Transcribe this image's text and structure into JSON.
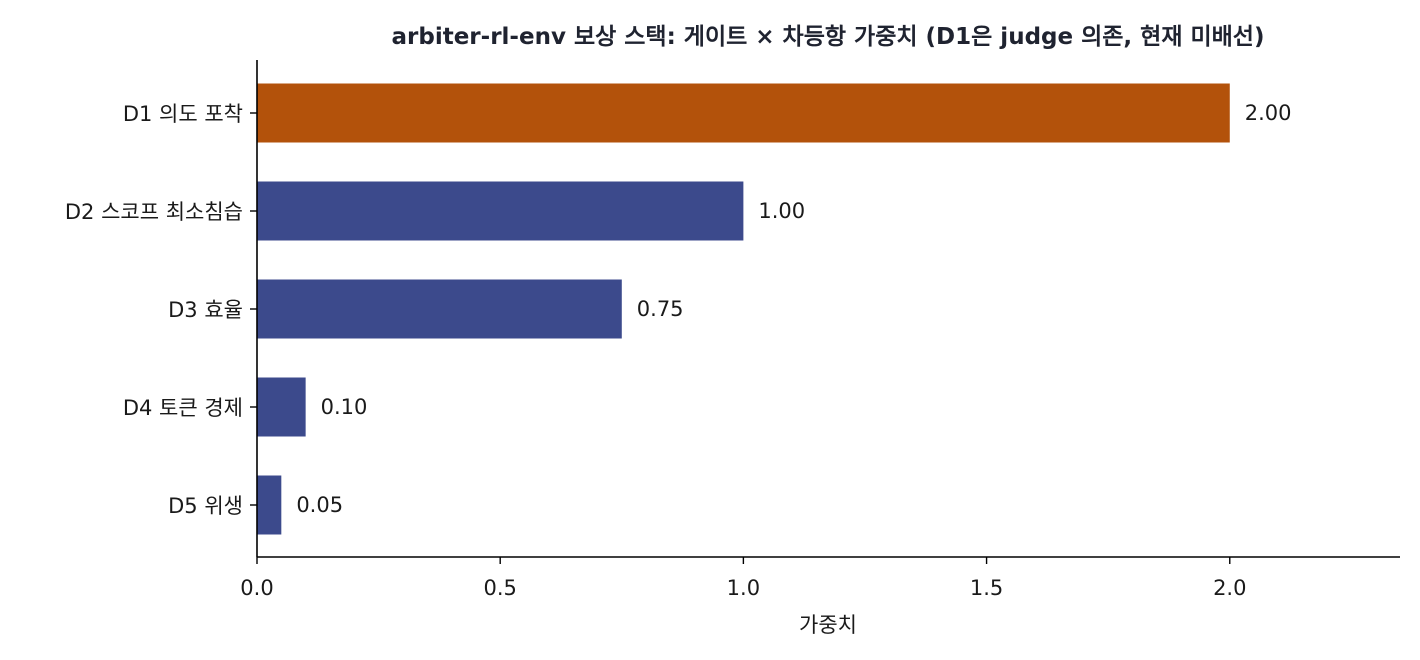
{
  "chart_data": {
    "type": "bar",
    "orientation": "horizontal",
    "title": "arbiter-rl-env 보상 스택: 게이트 × 차등항 가중치 (D1은 judge 의존, 현재 미배선)",
    "xlabel": "가중치",
    "ylabel": "",
    "xlim": [
      0,
      2.35
    ],
    "xticks": [
      "0.0",
      "0.5",
      "1.0",
      "1.5",
      "2.0"
    ],
    "categories": [
      "D1 의도 포착",
      "D2 스코프 최소침습",
      "D3 효율",
      "D4 토큰 경제",
      "D5 위생"
    ],
    "values": [
      2.0,
      1.0,
      0.75,
      0.1,
      0.05
    ],
    "value_labels": [
      "2.00",
      "1.00",
      "0.75",
      "0.10",
      "0.05"
    ],
    "highlight_color": "#b3520b",
    "bar_color": "#3c4a8c",
    "highlight_index": 0,
    "grid": false,
    "legend": "none"
  }
}
